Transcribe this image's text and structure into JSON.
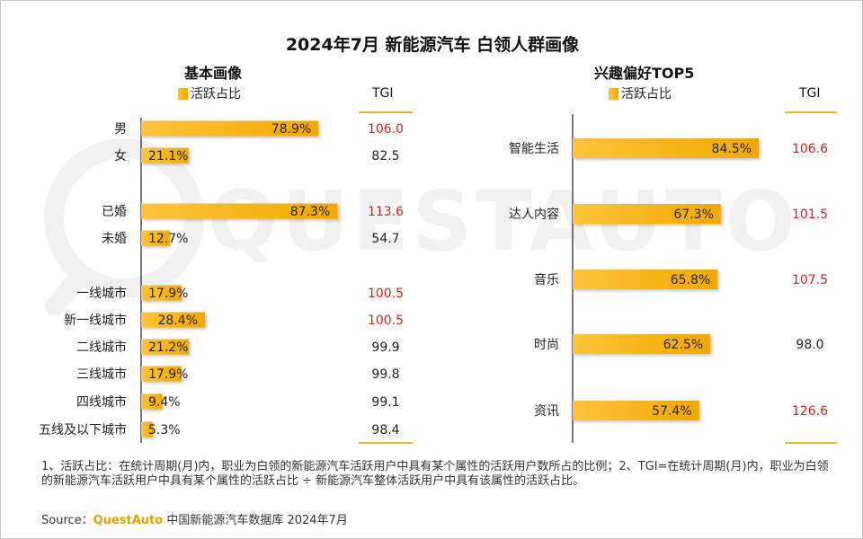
{
  "title": "2024年7月 新能源汽车 白领人群画像",
  "watermark_text": "QUESTAUTO",
  "colors": {
    "bar": "#f5b01a",
    "bar_dark": "#e8a000",
    "tgi_high": "#d42020",
    "tgi_normal": "#222222",
    "accent_line": "#f2b52a"
  },
  "tgi_label": "TGI",
  "chart_data": [
    {
      "type": "bar",
      "orientation": "horizontal",
      "title": "基本画像",
      "legend": [
        "活跃占比"
      ],
      "categories": [
        "男",
        "女",
        "已婚",
        "未婚",
        "一线城市",
        "新一线城市",
        "二线城市",
        "三线城市",
        "四线城市",
        "五线及以下城市"
      ],
      "groups": [
        [
          "男",
          "女"
        ],
        [
          "已婚",
          "未婚"
        ],
        [
          "一线城市",
          "新一线城市",
          "二线城市",
          "三线城市",
          "四线城市",
          "五线及以下城市"
        ]
      ],
      "values": [
        78.9,
        21.1,
        87.3,
        12.7,
        17.9,
        28.4,
        21.2,
        17.9,
        9.4,
        5.3
      ],
      "value_labels": [
        "78.9%",
        "21.1%",
        "87.3%",
        "12.7%",
        "17.9%",
        "28.4%",
        "21.2%",
        "17.9%",
        "9.4%",
        "5.3%"
      ],
      "tgi": [
        "106.0",
        "82.5",
        "113.6",
        "54.7",
        "100.5",
        "100.5",
        "99.9",
        "99.8",
        "99.1",
        "98.4"
      ],
      "tgi_highlight": [
        true,
        false,
        true,
        false,
        true,
        true,
        false,
        false,
        false,
        false
      ],
      "xlim": [
        0,
        100
      ]
    },
    {
      "type": "bar",
      "orientation": "horizontal",
      "title": "兴趣偏好TOP5",
      "legend": [
        "活跃占比"
      ],
      "categories": [
        "智能生活",
        "达人内容",
        "音乐",
        "时尚",
        "资讯"
      ],
      "values": [
        84.5,
        67.3,
        65.8,
        62.5,
        57.4
      ],
      "value_labels": [
        "84.5%",
        "67.3%",
        "65.8%",
        "62.5%",
        "57.4%"
      ],
      "tgi": [
        "106.6",
        "101.5",
        "107.5",
        "98.0",
        "126.6"
      ],
      "tgi_highlight": [
        true,
        true,
        true,
        false,
        true
      ],
      "xlim": [
        0,
        100
      ]
    }
  ],
  "footnote": "1、活跃占比：在统计周期(月)内，职业为白领的新能源汽车活跃用户中具有某个属性的活跃用户数所占的比例；2、TGI=在统计周期(月)内，职业为白领的新能源汽车活跃用户中具有某个属性的活跃占比 ÷ 新能源汽车整体活跃用户中具有该属性的活跃占比。",
  "source_prefix": "Source：",
  "source_brand": "QuestAuto",
  "source_suffix": " 中国新能源汽车数据库 2024年7月"
}
